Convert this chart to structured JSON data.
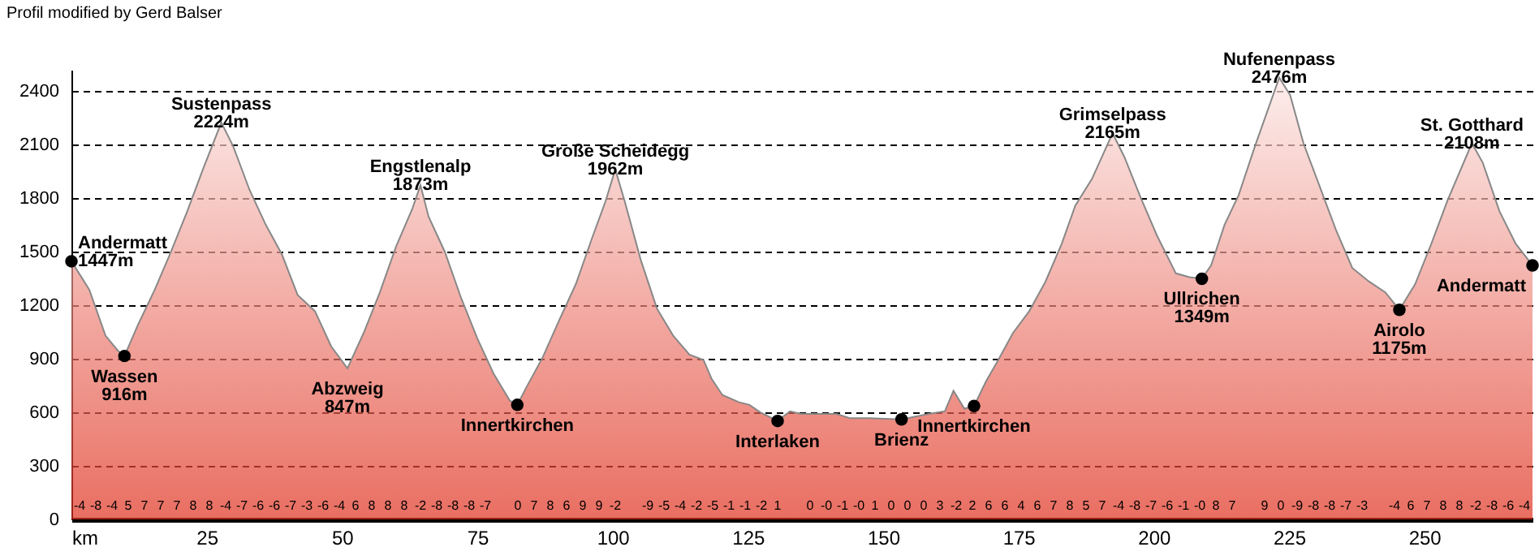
{
  "chart_data": {
    "type": "area",
    "title": "Profil modified by Gerd Balser",
    "xlim": [
      0,
      270
    ],
    "xticks": [
      {
        "value": 0,
        "label": "km"
      },
      25,
      50,
      75,
      100,
      125,
      150,
      175,
      200,
      225,
      250
    ],
    "ylim": [
      0,
      2520
    ],
    "yticks": [
      0,
      300,
      600,
      900,
      1200,
      1500,
      1800,
      2100,
      2400
    ],
    "grid": "y",
    "series": [
      {
        "color": "#e0301e",
        "x": [
          0,
          3.3,
          6.3,
          8.6,
          9.8,
          12.3,
          15.4,
          18.4,
          21.4,
          24.4,
          27.7,
          29.9,
          32.9,
          35.9,
          38.9,
          41.8,
          45,
          48,
          51,
          54,
          57,
          60,
          63,
          64.5,
          66,
          69,
          72,
          75,
          78,
          81,
          82.4,
          84.1,
          87.1,
          90.2,
          93.2,
          96.2,
          98.7,
          100.5,
          102.2,
          105.2,
          108.2,
          111.2,
          114.2,
          116.8,
          118.3,
          120.3,
          123.3,
          125.3,
          127.3,
          130.5,
          132.8,
          134.8,
          141.4,
          143.9,
          147.4,
          153.4,
          158.4,
          161.4,
          163,
          165,
          166.8,
          169,
          171,
          174,
          177,
          180,
          183,
          185.5,
          188.6,
          192.4,
          194.6,
          197.6,
          200.6,
          204.1,
          206.6,
          208.9,
          210.6,
          213.1,
          215.7,
          218.7,
          223.2,
          225.2,
          227.7,
          230.7,
          233.7,
          236.7,
          239.8,
          242.8,
          245.4,
          248.3,
          251.3,
          254.3,
          258.8,
          260.8,
          263.9,
          266.9,
          270
        ],
        "values": [
          1447,
          1288,
          1030,
          945,
          916,
          1091,
          1288,
          1500,
          1727,
          1970,
          2224,
          2091,
          1848,
          1652,
          1485,
          1258,
          1167,
          970,
          847,
          1045,
          1273,
          1530,
          1742,
          1873,
          1697,
          1500,
          1242,
          1015,
          818,
          666,
          642,
          742,
          909,
          1121,
          1318,
          1576,
          1783,
          1962,
          1788,
          1455,
          1182,
          1030,
          924,
          894,
          788,
          697,
          658,
          642,
          600,
          552,
          606,
          591,
          591,
          567,
          567,
          561,
          591,
          606,
          721,
          621,
          636,
          773,
          879,
          1045,
          1167,
          1333,
          1545,
          1758,
          1909,
          2165,
          2030,
          1803,
          1591,
          1379,
          1358,
          1349,
          1424,
          1652,
          1818,
          2091,
          2476,
          2379,
          2106,
          1864,
          1621,
          1409,
          1333,
          1273,
          1175,
          1318,
          1545,
          1788,
          2108,
          2000,
          1727,
          1545,
          1424
        ]
      },
      {
        "type": "scatter",
        "marker": "circle",
        "color": "#000000",
        "x": [
          0,
          9.8,
          82.4,
          130.5,
          153.4,
          166.8,
          208.9,
          245.4,
          270
        ],
        "values": [
          1447,
          916,
          642,
          552,
          561,
          636,
          1349,
          1175,
          1424
        ]
      }
    ],
    "annotations": [
      {
        "text": "Andermatt\n1447m",
        "x": 0,
        "y": 1447
      },
      {
        "text": "Wassen\n916m",
        "x": 9.8,
        "y": 916
      },
      {
        "text": "Sustenpass\n2224m",
        "x": 27.7,
        "y": 2224
      },
      {
        "text": "Abzweig\n847m",
        "x": 51,
        "y": 847
      },
      {
        "text": "Engstlenalp\n1873m",
        "x": 64.5,
        "y": 1873
      },
      {
        "text": "Innertkirchen",
        "x": 82.4,
        "y": 642
      },
      {
        "text": "Große Scheidegg\n1962m",
        "x": 100.5,
        "y": 1962
      },
      {
        "text": "Interlaken",
        "x": 130.5,
        "y": 552
      },
      {
        "text": "Brienz",
        "x": 153.4,
        "y": 561
      },
      {
        "text": "Innertkirchen",
        "x": 166.8,
        "y": 636
      },
      {
        "text": "Grimselpass\n2165m",
        "x": 192.4,
        "y": 2165
      },
      {
        "text": "Ullrichen\n1349m",
        "x": 208.9,
        "y": 1349
      },
      {
        "text": "Nufenenpass\n2476m",
        "x": 223.2,
        "y": 2476
      },
      {
        "text": "Airolo\n1175m",
        "x": 245.4,
        "y": 1175
      },
      {
        "text": "St. Gotthard\n2108m",
        "x": 258.8,
        "y": 2108
      },
      {
        "text": "Andermatt",
        "x": 270,
        "y": 1424
      },
      "-4 -8 -4 5 7 7 7 8 8 -4 -7 -6 -6 -7 -3 -6 -4 6 8 8 8 -2 -8 -8 -8 -7",
      "0 7 8 6 9 9 -2",
      "-9 -5 -4 -2 -5 -1 -1 -2 1",
      "0 -0 -1 -0 1 0 0 0 3 -2 2 6 6 4 6 7 8 5 7 -4 -8 -7 -6 -1 -0 8 7",
      "9 0 -9 -8 -8 -7 -3",
      "-4 6 7 8 8 -2 -8 -6 -4"
    ]
  }
}
